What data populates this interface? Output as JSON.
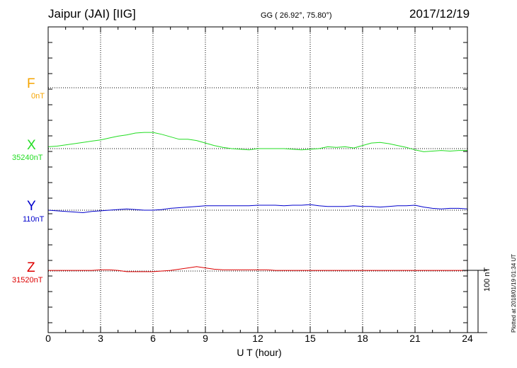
{
  "header": {
    "station": "Jaipur (JAI)  [IIG]",
    "coords": "GG ( 26.92°,  75.80°)",
    "date": "2017/12/19"
  },
  "components": [
    {
      "letter": "F",
      "base": "0nT",
      "color": "#f5a400"
    },
    {
      "letter": "X",
      "base": "35240nT",
      "color": "#22dd22"
    },
    {
      "letter": "Y",
      "base": "110nT",
      "color": "#0000cc"
    },
    {
      "letter": "Z",
      "base": "31520nT",
      "color": "#dd0000"
    }
  ],
  "scale": {
    "label": "100 nT"
  },
  "footer": {
    "plotted": "Plotted at 2018/01/19 01:34 UT"
  },
  "chart_data": {
    "type": "line",
    "xlabel": "U T (hour)",
    "xlim": [
      0,
      24
    ],
    "xticks": [
      "0",
      "3",
      "6",
      "9",
      "12",
      "15",
      "18",
      "21",
      "24"
    ],
    "units": "nT",
    "scale_bar_nT": 100,
    "series": [
      {
        "name": "X",
        "base": 35240,
        "color": "#22dd22",
        "x": [
          0,
          0.5,
          1,
          1.5,
          2,
          2.5,
          3,
          3.5,
          4,
          4.5,
          5,
          5.5,
          6,
          6.5,
          7,
          7.5,
          8,
          8.5,
          9,
          9.5,
          10,
          10.5,
          11,
          11.5,
          12,
          12.5,
          13,
          13.5,
          14,
          14.5,
          15,
          15.5,
          16,
          16.5,
          17,
          17.5,
          18,
          18.5,
          19,
          19.5,
          20,
          20.5,
          21,
          21.5,
          22,
          22.5,
          23,
          23.5,
          24
        ],
        "y": [
          3,
          4,
          6,
          8,
          10,
          12,
          14,
          17,
          20,
          22,
          25,
          26,
          26,
          23,
          19,
          15,
          15,
          13,
          9,
          5,
          2,
          0,
          -1,
          -2,
          0,
          0,
          0,
          0,
          -1,
          -2,
          -1,
          0,
          3,
          2,
          3,
          1,
          5,
          9,
          10,
          8,
          5,
          2,
          -2,
          -5,
          -4,
          -3,
          -4,
          -3,
          -3
        ]
      },
      {
        "name": "Y",
        "base": 110,
        "color": "#0000cc",
        "x": [
          0,
          0.5,
          1,
          1.5,
          2,
          2.5,
          3,
          3.5,
          4,
          4.5,
          5,
          5.5,
          6,
          6.5,
          7,
          7.5,
          8,
          8.5,
          9,
          9.5,
          10,
          10.5,
          11,
          11.5,
          12,
          12.5,
          13,
          13.5,
          14,
          14.5,
          15,
          15.5,
          16,
          16.5,
          17,
          17.5,
          18,
          18.5,
          19,
          19.5,
          20,
          20.5,
          21,
          21.5,
          22,
          22.5,
          23,
          23.5,
          24
        ],
        "y": [
          0,
          -1,
          -2,
          -3,
          -4,
          -2,
          -1,
          0,
          1,
          2,
          1,
          0,
          0,
          1,
          3,
          4,
          5,
          6,
          7,
          7,
          7,
          7,
          7,
          7,
          8,
          8,
          8,
          7,
          8,
          8,
          9,
          7,
          6,
          6,
          6,
          7,
          6,
          6,
          5,
          6,
          7,
          7,
          8,
          5,
          3,
          2,
          3,
          3,
          2
        ]
      },
      {
        "name": "Z",
        "base": 31520,
        "color": "#dd0000",
        "x": [
          0,
          0.5,
          1,
          1.5,
          2,
          2.5,
          3,
          3.5,
          4,
          4.5,
          5,
          5.5,
          6,
          6.5,
          7,
          7.5,
          8,
          8.5,
          9,
          9.5,
          10,
          10.5,
          11,
          11.5,
          12,
          12.5,
          13,
          13.5,
          14,
          14.5,
          15,
          15.5,
          16,
          16.5,
          17,
          17.5,
          18,
          18.5,
          19,
          19.5,
          20,
          20.5,
          21,
          21.5,
          22,
          22.5,
          23,
          23.5,
          24
        ],
        "y": [
          1,
          1,
          1,
          1,
          1,
          1,
          2,
          2,
          1,
          -1,
          -1,
          -1,
          -1,
          0,
          1,
          3,
          5,
          7,
          5,
          3,
          2,
          2,
          2,
          2,
          2,
          2,
          1,
          1,
          1,
          1,
          1,
          1,
          1,
          1,
          1,
          1,
          1,
          1,
          1,
          1,
          1,
          1,
          1,
          1,
          1,
          1,
          1,
          1,
          1
        ]
      }
    ]
  }
}
